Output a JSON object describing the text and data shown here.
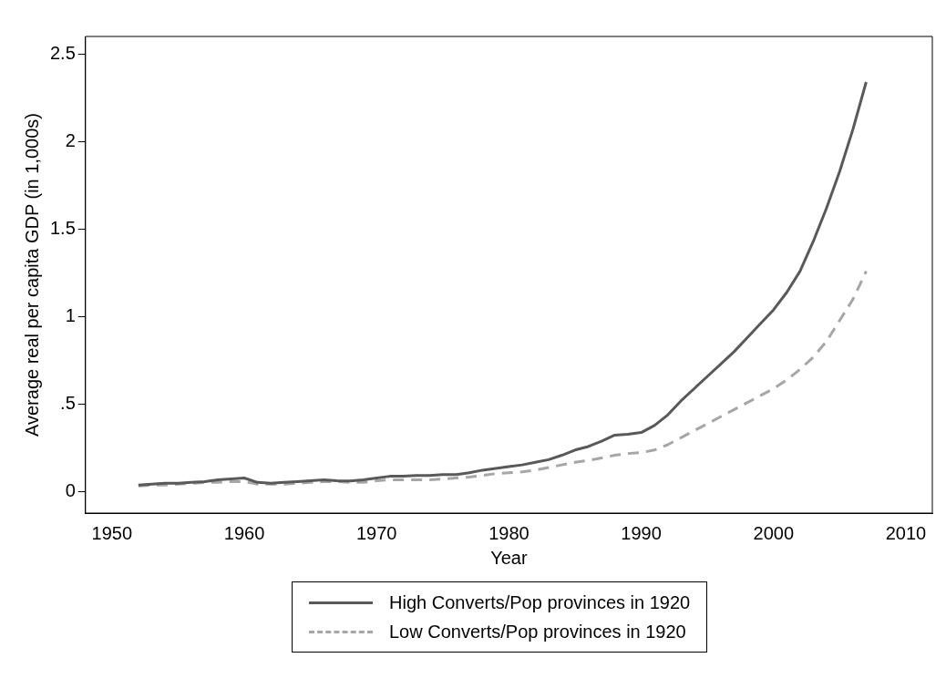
{
  "chart_data": {
    "type": "line",
    "xlabel": "Year",
    "ylabel": "Average real per capita GDP (in 1,000s)",
    "x": [
      1952,
      1953,
      1954,
      1955,
      1956,
      1957,
      1958,
      1959,
      1960,
      1961,
      1962,
      1963,
      1964,
      1965,
      1966,
      1967,
      1968,
      1969,
      1970,
      1971,
      1972,
      1973,
      1974,
      1975,
      1976,
      1977,
      1978,
      1979,
      1980,
      1981,
      1982,
      1983,
      1984,
      1985,
      1986,
      1987,
      1988,
      1989,
      1990,
      1991,
      1992,
      1993,
      1994,
      1995,
      1996,
      1997,
      1998,
      1999,
      2000,
      2001,
      2002,
      2003,
      2004,
      2005,
      2006,
      2007
    ],
    "series": [
      {
        "name": "High Converts/Pop provinces in 1920",
        "color": "#595959",
        "line_style": "solid",
        "values": [
          0.04,
          0.045,
          0.05,
          0.05,
          0.055,
          0.06,
          0.07,
          0.075,
          0.08,
          0.055,
          0.05,
          0.055,
          0.06,
          0.065,
          0.07,
          0.065,
          0.063,
          0.07,
          0.08,
          0.09,
          0.09,
          0.095,
          0.095,
          0.1,
          0.1,
          0.11,
          0.125,
          0.135,
          0.145,
          0.155,
          0.17,
          0.185,
          0.21,
          0.24,
          0.26,
          0.29,
          0.325,
          0.33,
          0.34,
          0.38,
          0.44,
          0.52,
          0.59,
          0.66,
          0.73,
          0.8,
          0.88,
          0.96,
          1.04,
          1.14,
          1.26,
          1.43,
          1.62,
          1.83,
          2.07,
          2.34
        ]
      },
      {
        "name": "Low Converts/Pop provinces in 1920",
        "color": "#a6a6a6",
        "line_style": "dashed",
        "values": [
          0.035,
          0.04,
          0.04,
          0.045,
          0.05,
          0.055,
          0.055,
          0.06,
          0.06,
          0.045,
          0.045,
          0.045,
          0.05,
          0.055,
          0.06,
          0.06,
          0.055,
          0.055,
          0.065,
          0.07,
          0.07,
          0.07,
          0.07,
          0.075,
          0.08,
          0.085,
          0.095,
          0.105,
          0.11,
          0.115,
          0.125,
          0.14,
          0.155,
          0.17,
          0.18,
          0.195,
          0.21,
          0.22,
          0.225,
          0.24,
          0.27,
          0.31,
          0.35,
          0.39,
          0.43,
          0.47,
          0.51,
          0.55,
          0.59,
          0.64,
          0.7,
          0.77,
          0.86,
          0.98,
          1.1,
          1.26
        ]
      }
    ],
    "xlim": [
      1948,
      2012
    ],
    "xticks": [
      1950,
      1960,
      1970,
      1980,
      1990,
      2000,
      2010
    ],
    "ylim": [
      -0.12,
      2.6
    ],
    "yticks": [
      0,
      {
        "value": 0.5,
        "label": ".5"
      },
      1,
      1.5,
      2,
      2.5
    ],
    "grid": false,
    "legend": "bottom",
    "marker": "none"
  }
}
